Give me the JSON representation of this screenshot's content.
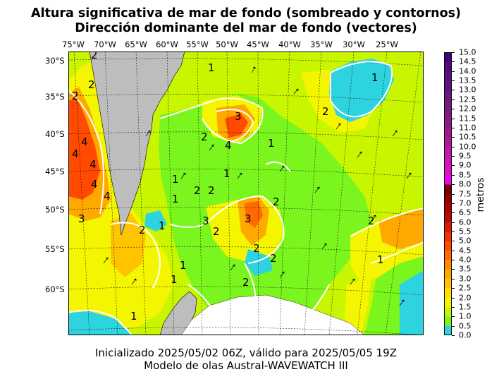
{
  "title_line1": "Altura significativa de mar de fondo (sombreado y contornos)",
  "title_line2": "Dirección dominante del mar de fondo (vectores)",
  "longitude_labels": [
    "75°W",
    "70°W",
    "65°W",
    "60°W",
    "55°W",
    "50°W",
    "45°W",
    "40°W",
    "35°W",
    "30°W",
    "25°W"
  ],
  "latitude_labels": [
    "30°S",
    "35°S",
    "40°S",
    "45°S",
    "50°S",
    "55°S",
    "60°S"
  ],
  "colorbar": {
    "unit_label": "metros",
    "tick_labels": [
      "15.0",
      "14.5",
      "14.0",
      "13.5",
      "13.0",
      "12.5",
      "12.0",
      "11.5",
      "11.0",
      "10.5",
      "10.0",
      "9.5",
      "9.0",
      "8.5",
      "8.0",
      "7.5",
      "7.0",
      "6.5",
      "6.0",
      "5.5",
      "5.0",
      "4.5",
      "4.0",
      "3.5",
      "3.0",
      "2.5",
      "2.0",
      "1.5",
      "1.0",
      "0.5",
      "0.0"
    ],
    "level_colors": [
      "#2dd4e0",
      "#7bf51e",
      "#c8f500",
      "#f4f500",
      "#ffe000",
      "#ffc400",
      "#ffa800",
      "#ff8a00",
      "#ff6a00",
      "#ff4a00",
      "#f03000",
      "#d81800",
      "#c00800",
      "#a80000",
      "#900000",
      "#780000",
      "#f000f0",
      "#e010c8",
      "#d014b8",
      "#c018a8",
      "#b01898",
      "#a01890",
      "#901888",
      "#801a80",
      "#741a80",
      "#681880",
      "#5e1480",
      "#541080",
      "#4a0c80",
      "#400080"
    ]
  },
  "contour_labels": [
    "2",
    "2",
    "2",
    "1",
    "3",
    "2",
    "4",
    "1",
    "2",
    "1",
    "4",
    "4",
    "1",
    "4",
    "1",
    "4",
    "2",
    "4",
    "2",
    "1",
    "3",
    "3",
    "2",
    "1",
    "2",
    "2",
    "2",
    "3",
    "2",
    "1",
    "1",
    "1",
    "2",
    "2",
    "1"
  ],
  "map_colors": {
    "land": "#bdbdbd",
    "ice": "#ffffff",
    "contour": "#ffffff",
    "border": "#000000"
  },
  "footer_line1": "Inicializado 2025/05/02 06Z, válido para 2025/05/05 19Z",
  "footer_line2": "Modelo de olas Austral-WAVEWATCH III"
}
